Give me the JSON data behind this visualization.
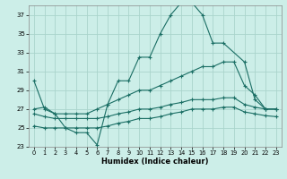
{
  "xlabel": "Humidex (Indice chaleur)",
  "bg_color": "#cceee8",
  "grid_color": "#aad4cc",
  "line_color": "#1a6e64",
  "xlim": [
    -0.5,
    23.5
  ],
  "ylim": [
    23,
    38
  ],
  "yticks": [
    23,
    25,
    27,
    29,
    31,
    33,
    35,
    37
  ],
  "xticks": [
    0,
    1,
    2,
    3,
    4,
    5,
    6,
    7,
    8,
    9,
    10,
    11,
    12,
    13,
    14,
    15,
    16,
    17,
    18,
    19,
    20,
    21,
    22,
    23
  ],
  "series": [
    {
      "x": [
        0,
        1,
        2,
        3,
        4,
        5,
        6,
        7,
        8,
        9,
        10,
        11,
        12,
        13,
        14,
        15,
        16,
        17,
        18,
        20,
        21,
        22,
        23
      ],
      "y": [
        30,
        27,
        26.5,
        25,
        24.5,
        24.5,
        23.2,
        27.5,
        30,
        30,
        32.5,
        32.5,
        35,
        37,
        38.3,
        38.3,
        37,
        34,
        34,
        32,
        28,
        27,
        27
      ]
    },
    {
      "x": [
        0,
        1,
        2,
        3,
        4,
        5,
        6,
        7,
        8,
        9,
        10,
        11,
        12,
        13,
        14,
        15,
        16,
        17,
        18,
        19,
        20,
        21,
        22,
        23
      ],
      "y": [
        27,
        27.2,
        26.5,
        26.5,
        26.5,
        26.5,
        27,
        27.5,
        28,
        28.5,
        29,
        29,
        29.5,
        30,
        30.5,
        31,
        31.5,
        31.5,
        32,
        32,
        29.5,
        28.5,
        27,
        27
      ]
    },
    {
      "x": [
        0,
        1,
        2,
        3,
        4,
        5,
        6,
        7,
        8,
        9,
        10,
        11,
        12,
        13,
        14,
        15,
        16,
        17,
        18,
        19,
        20,
        21,
        22,
        23
      ],
      "y": [
        26.5,
        26.2,
        26,
        26,
        26,
        26,
        26,
        26.2,
        26.5,
        26.7,
        27,
        27,
        27.2,
        27.5,
        27.7,
        28,
        28,
        28,
        28.2,
        28.2,
        27.5,
        27.2,
        27,
        27
      ]
    },
    {
      "x": [
        0,
        1,
        2,
        3,
        4,
        5,
        6,
        7,
        8,
        9,
        10,
        11,
        12,
        13,
        14,
        15,
        16,
        17,
        18,
        19,
        20,
        21,
        22,
        23
      ],
      "y": [
        25.2,
        25,
        25,
        25,
        25,
        25,
        25,
        25.2,
        25.5,
        25.7,
        26,
        26,
        26.2,
        26.5,
        26.7,
        27,
        27,
        27,
        27.2,
        27.2,
        26.7,
        26.5,
        26.3,
        26.2
      ]
    }
  ]
}
